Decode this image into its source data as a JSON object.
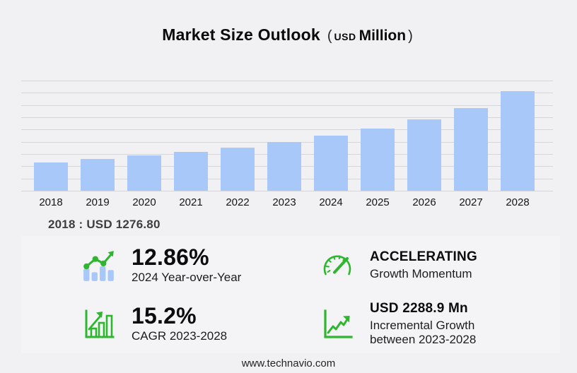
{
  "title": {
    "main": "Market Size Outlook",
    "paren_open": "(",
    "unit_currency": "USD",
    "unit_scale": "Million",
    "paren_close": ")"
  },
  "chart_data": {
    "type": "bar",
    "title": "Market Size Outlook (USD Million)",
    "categories": [
      "2018",
      "2019",
      "2020",
      "2021",
      "2022",
      "2023",
      "2024",
      "2025",
      "2026",
      "2027",
      "2028"
    ],
    "values": [
      1276.8,
      1432,
      1588,
      1753,
      1971,
      2224.4,
      2510.5,
      2812,
      3229,
      3746,
      4513.3
    ],
    "xlabel": "",
    "ylabel": "USD Million",
    "ylim": [
      0,
      5000
    ],
    "grid": "horizontal",
    "gridline_count": 10,
    "legend": "none",
    "bar_color": "#a8c8fa"
  },
  "anchor_note": {
    "text": "2018 : USD  1276.80"
  },
  "stats": {
    "yoy": {
      "icon": "bar-trend-icon",
      "value": "12.86%",
      "label": "2024 Year-over-Year"
    },
    "momentum": {
      "icon": "gauge-icon",
      "value": "ACCELERATING",
      "label": "Growth Momentum"
    },
    "cagr": {
      "icon": "chart-axis-bars-icon",
      "value": "15.2%",
      "label": "CAGR 2023-2028"
    },
    "incremental": {
      "icon": "axis-trend-icon",
      "value": "USD 2288.9 Mn",
      "label_line1": "Incremental Growth",
      "label_line2": "between 2023-2028"
    }
  },
  "footer": {
    "url": "www.technavio.com"
  },
  "colors": {
    "background": "#f1f1f3",
    "panel": "#f4f4f6",
    "bar": "#a8c8fa",
    "gridline": "#d6d6d8",
    "accent_green": "#2eb62e",
    "text_dark": "#0c0c0c",
    "anchor_text": "#3e3e3e"
  }
}
